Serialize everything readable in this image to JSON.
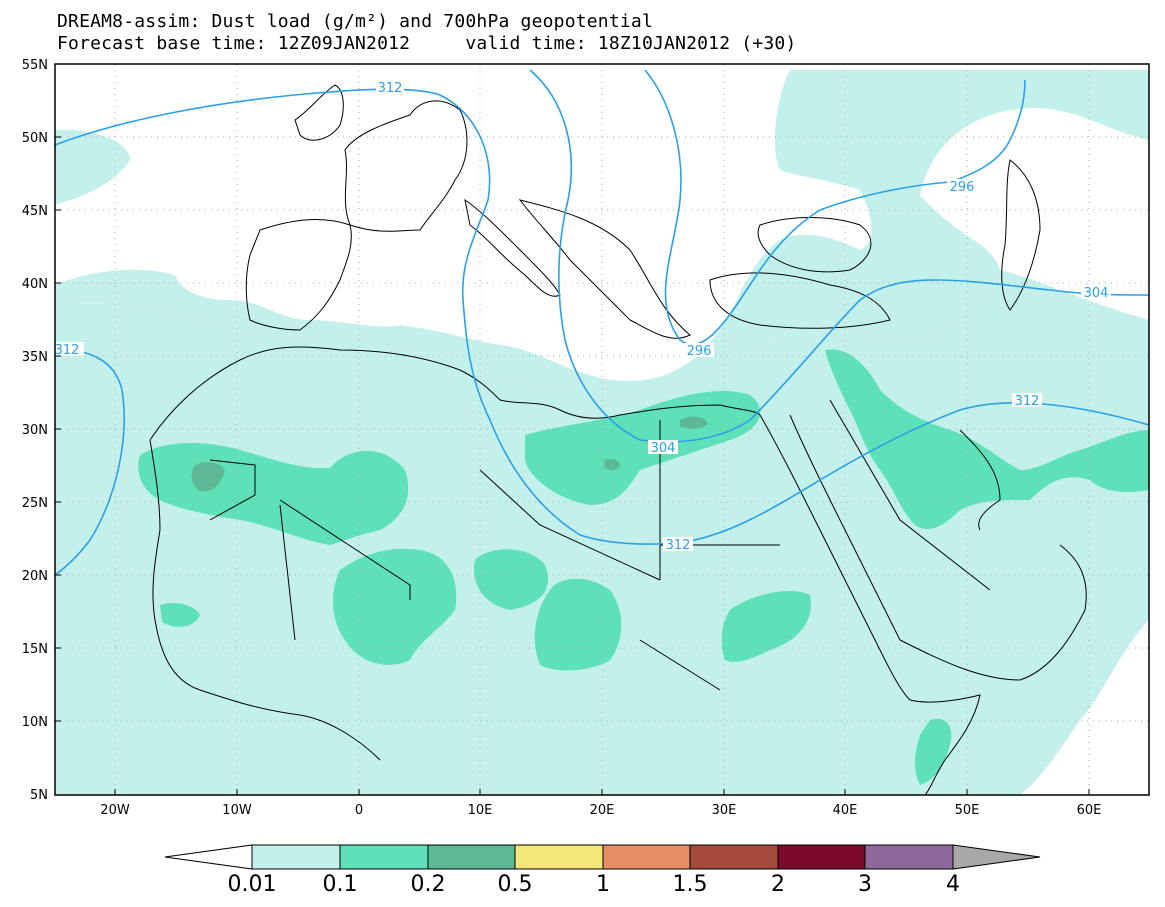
{
  "header": {
    "title_line1": "DREAM8-assim: Dust load (g/m²) and 700hPa geopotential",
    "title_line2": "Forecast base time: 12Z09JAN2012     valid time: 18Z10JAN2012 (+30)"
  },
  "map": {
    "lon_range": [
      -25,
      65
    ],
    "lat_range": [
      5,
      55
    ],
    "x_ticks": [
      "20W",
      "10W",
      "0",
      "10E",
      "20E",
      "30E",
      "40E",
      "50E",
      "60E"
    ],
    "y_ticks": [
      "5N",
      "10N",
      "15N",
      "20N",
      "25N",
      "30N",
      "35N",
      "40N",
      "45N",
      "50N",
      "55N"
    ],
    "grid": true,
    "contour_color": "#2aa0e6",
    "contour_labels": [
      "312",
      "312",
      "304",
      "312",
      "304",
      "296",
      "296",
      "312"
    ]
  },
  "colorbar": {
    "labels": [
      "0.01",
      "0.1",
      "0.2",
      "0.5",
      "1",
      "1.5",
      "2",
      "3",
      "4"
    ],
    "colors": [
      "#c4f0ec",
      "#5ee0b8",
      "#5db896",
      "#f5e679",
      "#e88e66",
      "#a64b3c",
      "#7b0a2c",
      "#8e6a9c",
      "#a8a8a8"
    ]
  }
}
